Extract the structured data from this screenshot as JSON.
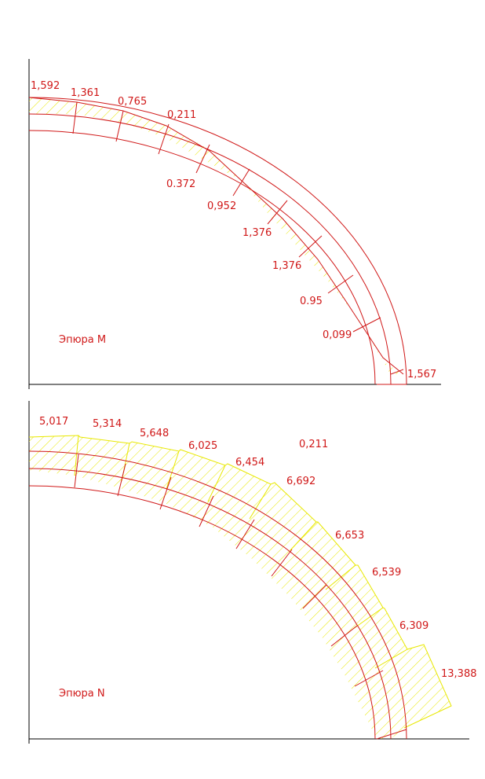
{
  "colors": {
    "structure": "#d01818",
    "hatch": "#e8e800",
    "axis": "#000000",
    "background": "#ffffff"
  },
  "diagram_m": {
    "title": "Эпюра M",
    "top_values": [
      "1,592",
      "1,361",
      "0,765",
      "0,211"
    ],
    "lower_values": [
      "0.372",
      "0,952",
      "1,376",
      "1,376",
      "0.95",
      "0,099",
      "1,567"
    ]
  },
  "diagram_n": {
    "title": "Эпюра N",
    "values": [
      "5,017",
      "5,314",
      "5,648",
      "6,025",
      "6,454",
      "6,692",
      "6,653",
      "6,539",
      "6,309",
      "13,388"
    ],
    "extra_label": "0,211"
  }
}
